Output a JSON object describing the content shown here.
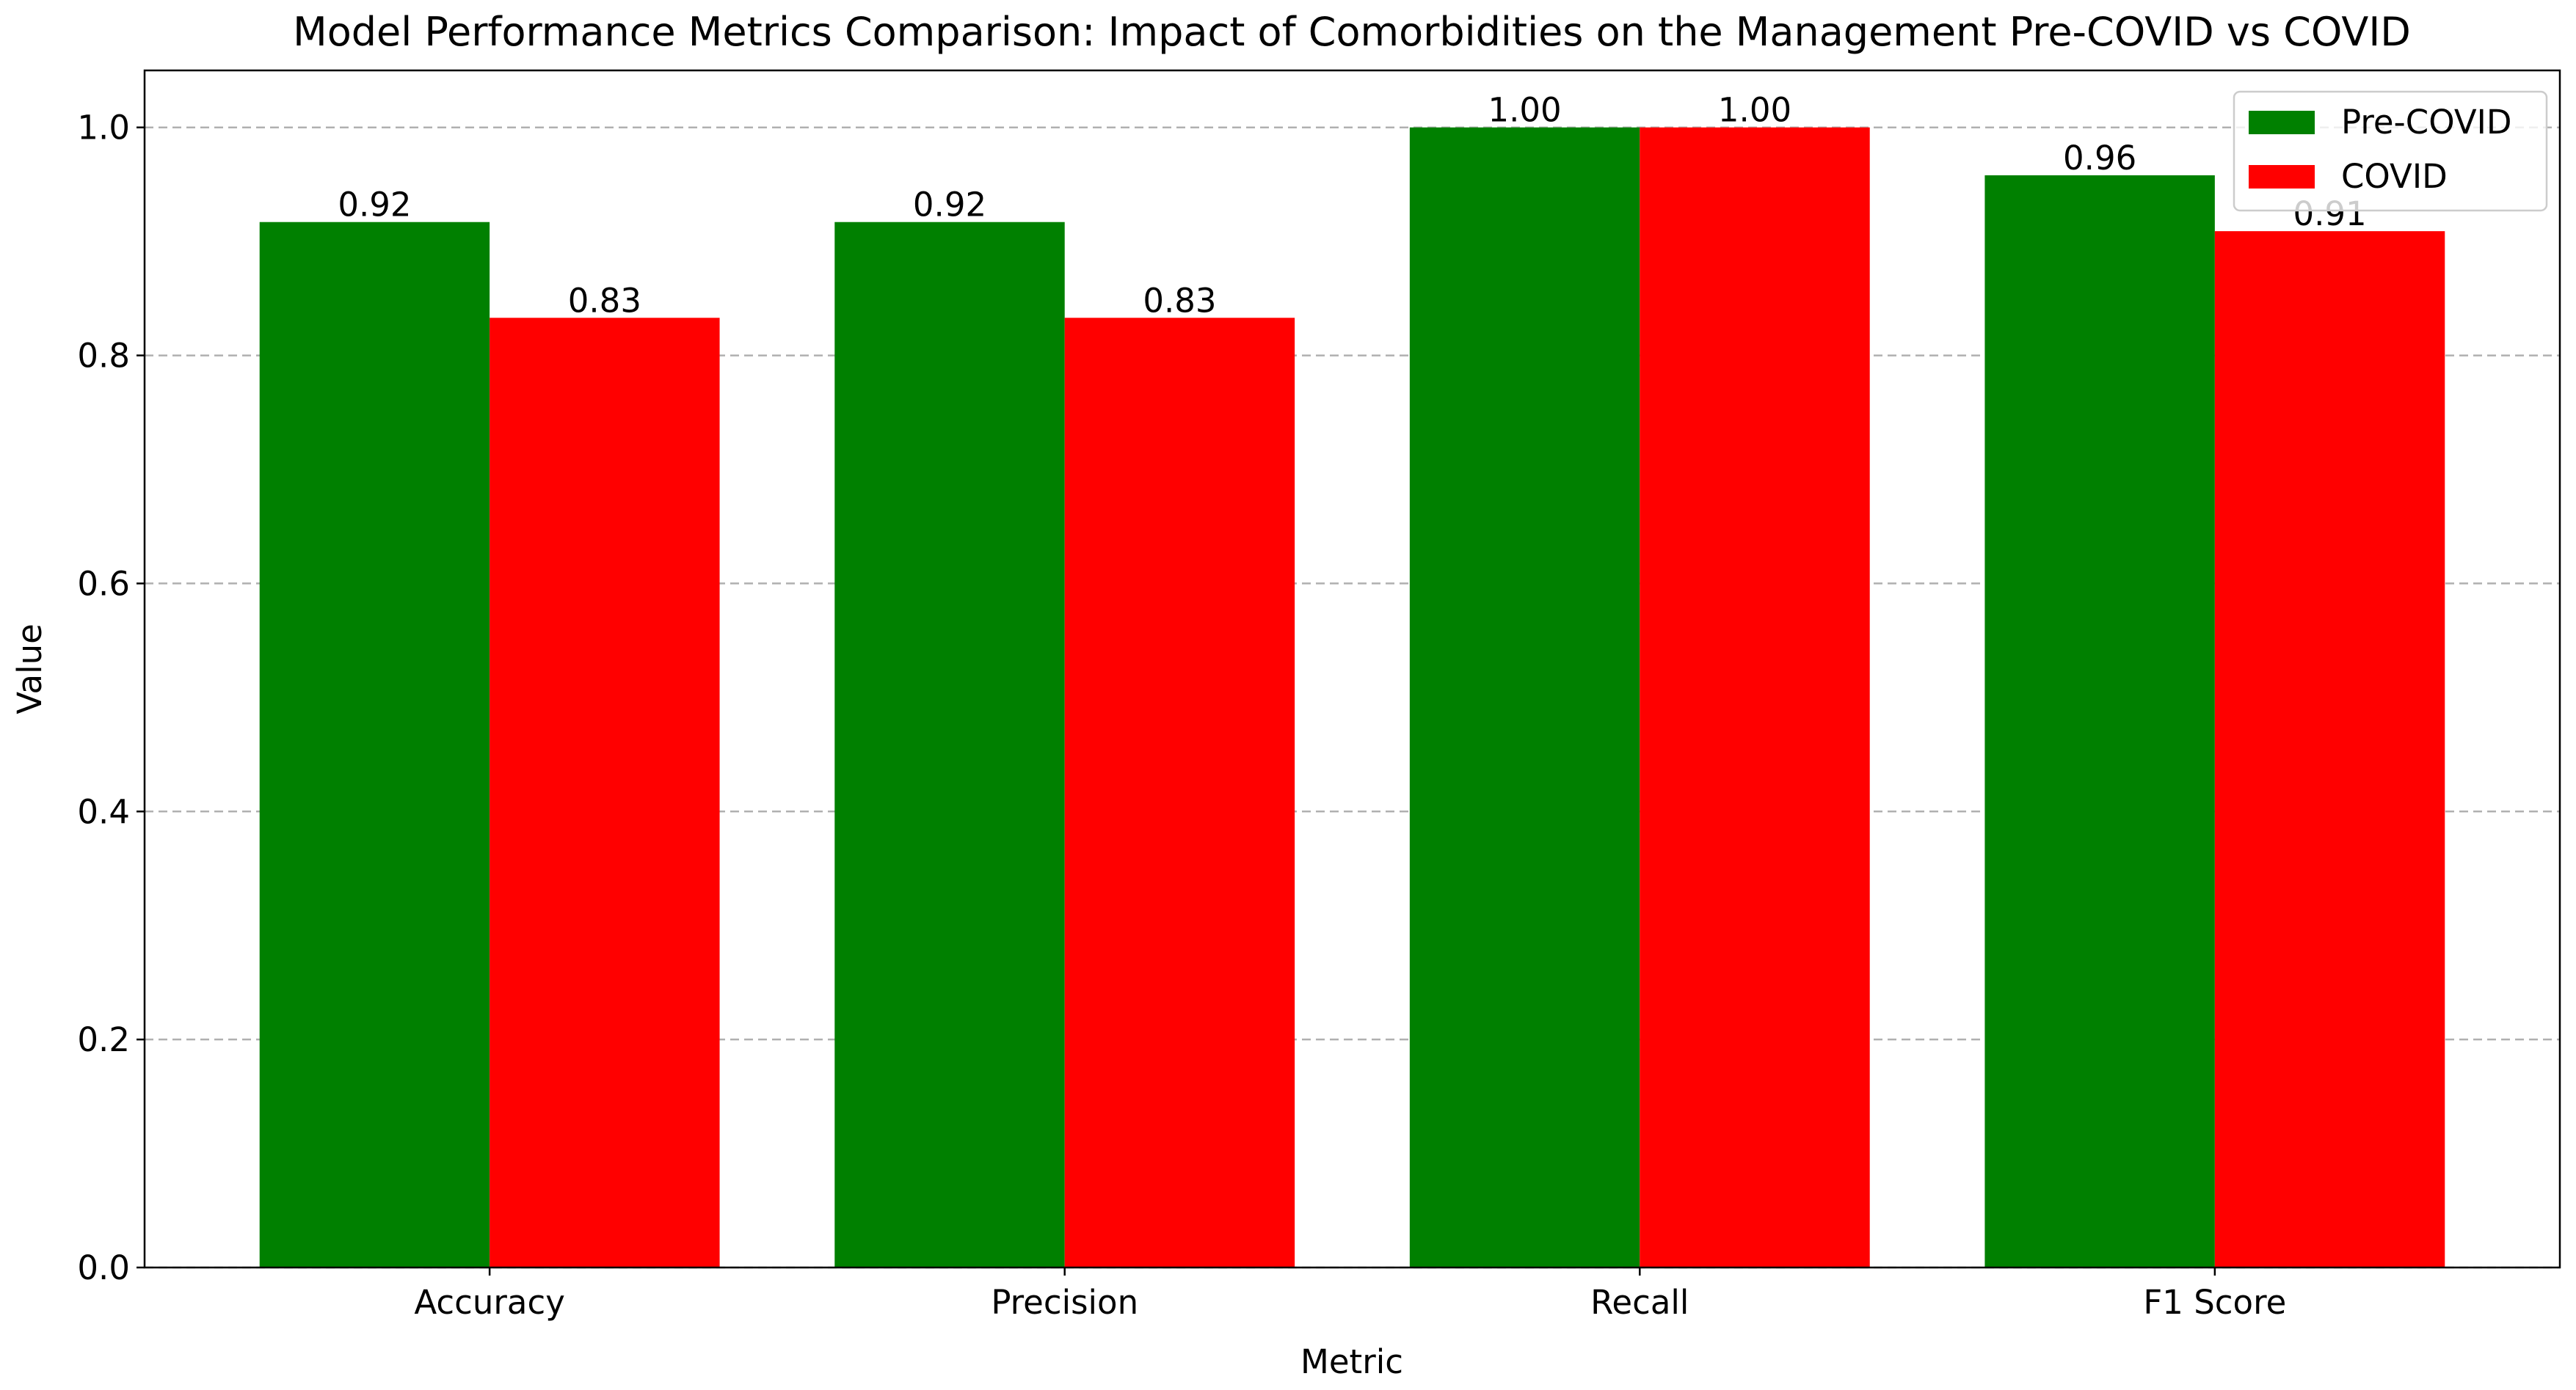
{
  "chart_data": {
    "type": "bar",
    "title": "Model Performance Metrics Comparison: Impact of Comorbidities on the Management Pre-COVID vs COVID",
    "x_label": "Metric",
    "y_label": "Value",
    "categories": [
      "Accuracy",
      "Precision",
      "Recall",
      "F1 Score"
    ],
    "series": [
      {
        "name": "Pre-COVID",
        "color": "#008000",
        "values": [
          0.917,
          0.917,
          1.0,
          0.958
        ],
        "value_labels": [
          "0.92",
          "0.92",
          "1.00",
          "0.96"
        ]
      },
      {
        "name": "COVID",
        "color": "#ff0000",
        "values": [
          0.833,
          0.833,
          1.0,
          0.909
        ],
        "value_labels": [
          "0.83",
          "0.83",
          "1.00",
          "0.91"
        ]
      }
    ],
    "ylim": [
      0,
      1.05
    ],
    "yticks": [
      {
        "value": 0,
        "label": "0.0"
      },
      0.2,
      0.4,
      0.6,
      0.8,
      {
        "value": 1,
        "label": "1.0"
      }
    ],
    "grid": true,
    "legend": "upper right"
  }
}
